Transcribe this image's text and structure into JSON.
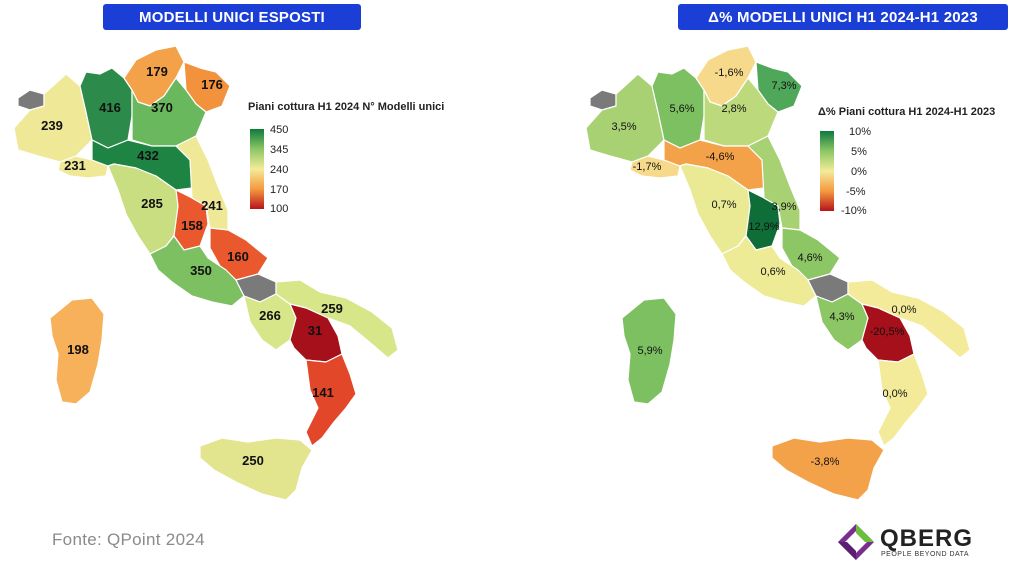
{
  "left_map": {
    "title": "MODELLI UNICI ESPOSTI",
    "legend_title": "Piani cottura H1 2024 N° Modelli unici",
    "legend_ticks": [
      "450",
      "345",
      "240",
      "170",
      "100"
    ],
    "legend_colors": [
      "#0d7a3e",
      "#8cc665",
      "#f3eb9a",
      "#f59a3f",
      "#b7121c"
    ],
    "regions": [
      {
        "name": "Valle d'Aosta",
        "value": null,
        "color": "#7a7a7a"
      },
      {
        "name": "Piemonte",
        "value": "239",
        "color": "#eee897"
      },
      {
        "name": "Liguria",
        "value": "231",
        "color": "#eee897"
      },
      {
        "name": "Lombardia",
        "value": "416",
        "color": "#2c8a4a"
      },
      {
        "name": "Trentino-Alto Adige",
        "value": "179",
        "color": "#f4a24a"
      },
      {
        "name": "Friuli-Venezia Giulia",
        "value": "176",
        "color": "#f3923c"
      },
      {
        "name": "Veneto",
        "value": "370",
        "color": "#6ab85d"
      },
      {
        "name": "Emilia-Romagna",
        "value": "432",
        "color": "#1e8443"
      },
      {
        "name": "Toscana",
        "value": "285",
        "color": "#c9de80"
      },
      {
        "name": "Umbria",
        "value": "158",
        "color": "#e9592d"
      },
      {
        "name": "Marche",
        "value": "241",
        "color": "#eee897"
      },
      {
        "name": "Abruzzo",
        "value": "160",
        "color": "#e9592d"
      },
      {
        "name": "Lazio",
        "value": "350",
        "color": "#7cc062"
      },
      {
        "name": "Molise",
        "value": null,
        "color": "#7a7a7a"
      },
      {
        "name": "Campania",
        "value": "266",
        "color": "#d7e688"
      },
      {
        "name": "Puglia",
        "value": "259",
        "color": "#d7e688"
      },
      {
        "name": "Basilicata",
        "value": "31",
        "color": "#a5101b"
      },
      {
        "name": "Calabria",
        "value": "141",
        "color": "#e2472a"
      },
      {
        "name": "Sicilia",
        "value": "250",
        "color": "#e2e48e"
      },
      {
        "name": "Sardegna",
        "value": "198",
        "color": "#f7b15a"
      }
    ]
  },
  "right_map": {
    "title": "Δ% MODELLI UNICI H1 2024-H1 2023",
    "legend_title": "Δ% Piani cottura H1 2024-H1 2023",
    "legend_ticks": [
      "10%",
      "5%",
      "0%",
      "-5%",
      "-10%"
    ],
    "legend_colors": [
      "#0d7a3e",
      "#8cc665",
      "#f3eb9a",
      "#f59a3f",
      "#b7121c"
    ],
    "regions": [
      {
        "name": "Valle d'Aosta",
        "value": null,
        "color": "#7a7a7a"
      },
      {
        "name": "Piemonte",
        "value": "3,5%",
        "color": "#a8d173"
      },
      {
        "name": "Liguria",
        "value": "-1,7%",
        "color": "#f6d98a"
      },
      {
        "name": "Lombardia",
        "value": "5,6%",
        "color": "#7cc062"
      },
      {
        "name": "Trentino-Alto Adige",
        "value": "-1,6%",
        "color": "#f6d98a"
      },
      {
        "name": "Friuli-Venezia Giulia",
        "value": "7,3%",
        "color": "#4fa859"
      },
      {
        "name": "Veneto",
        "value": "2,8%",
        "color": "#bcda7c"
      },
      {
        "name": "Emilia-Romagna",
        "value": "-4,6%",
        "color": "#f4a24a"
      },
      {
        "name": "Toscana",
        "value": "0,7%",
        "color": "#e9ea93"
      },
      {
        "name": "Umbria",
        "value": "12,9%",
        "color": "#0f6e38"
      },
      {
        "name": "Marche",
        "value": "3,9%",
        "color": "#a8d173"
      },
      {
        "name": "Abruzzo",
        "value": "4,6%",
        "color": "#8cc665"
      },
      {
        "name": "Lazio",
        "value": "0,6%",
        "color": "#eeeb96"
      },
      {
        "name": "Molise",
        "value": null,
        "color": "#7a7a7a"
      },
      {
        "name": "Campania",
        "value": "4,3%",
        "color": "#8cc665"
      },
      {
        "name": "Puglia",
        "value": "0,0%",
        "color": "#f3eb9a"
      },
      {
        "name": "Basilicata",
        "value": "-20,5%",
        "color": "#a5101b"
      },
      {
        "name": "Calabria",
        "value": "0,0%",
        "color": "#f3eb9a"
      },
      {
        "name": "Sicilia",
        "value": "-3,8%",
        "color": "#f4a24a"
      },
      {
        "name": "Sardegna",
        "value": "5,9%",
        "color": "#7cc062"
      }
    ]
  },
  "footer": {
    "source": "Fonte: QPoint 2024",
    "logo_name": "QBERG",
    "logo_tagline": "PEOPLE BEYOND DATA"
  }
}
